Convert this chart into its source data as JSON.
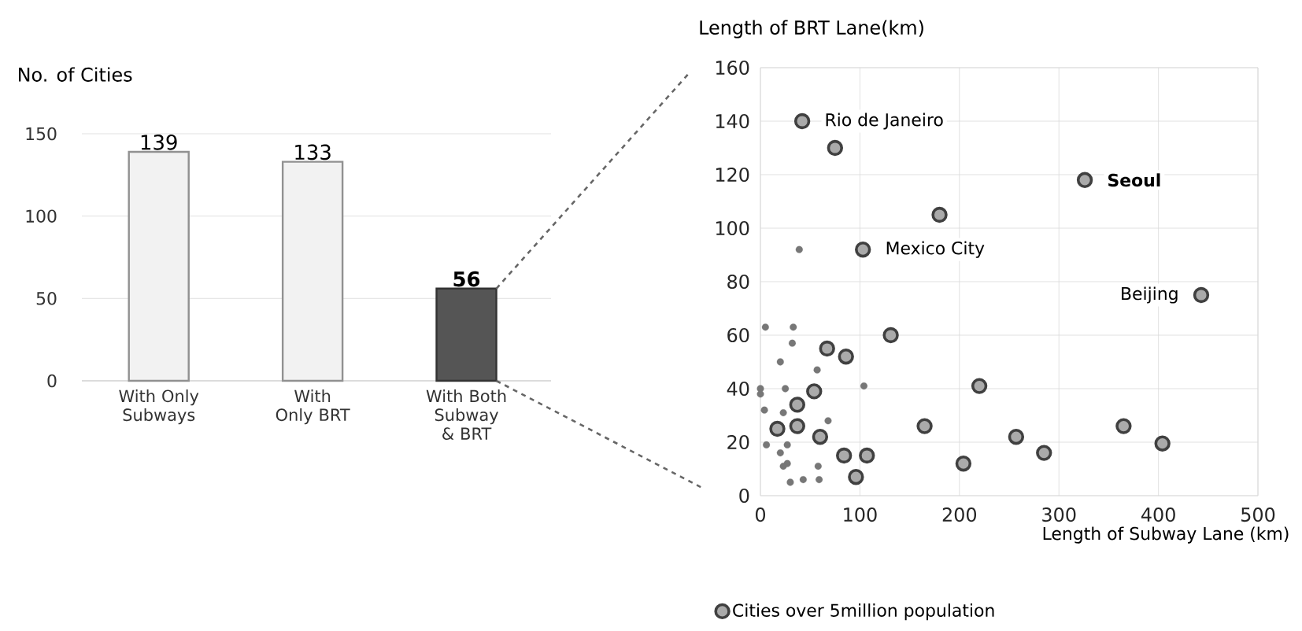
{
  "chart_data": [
    {
      "type": "bar",
      "ylabel": "No. of Cities",
      "categories": [
        "With Only Subways",
        "With Only BRT",
        "With Both Subway & BRT"
      ],
      "values": [
        139,
        133,
        56
      ],
      "colors": [
        "#f2f2f2",
        "#f2f2f2",
        "#555555"
      ],
      "value_labels": [
        "139",
        "133",
        "**56**"
      ],
      "ylim": [
        0,
        150
      ],
      "yticks": [
        0,
        50,
        100,
        150
      ],
      "grid": "y"
    },
    {
      "type": "scatter",
      "xlabel": "Length of Subway Lane (km)",
      "ylabel": "Length of BRT Lane(km)",
      "xlim": [
        0,
        500
      ],
      "ylim": [
        0,
        160
      ],
      "xticks": [
        0,
        100,
        200,
        300,
        400,
        500
      ],
      "yticks": [
        0,
        20,
        40,
        60,
        80,
        100,
        120,
        140,
        160
      ],
      "grid": true,
      "legend": "bottom",
      "series": [
        {
          "name": "Cities over 5million population",
          "color": "#aaaaaa",
          "x": [
            42,
            75,
            326,
            180,
            103,
            443,
            131,
            67,
            86,
            220,
            54,
            37,
            17,
            37,
            60,
            165,
            257,
            285,
            365,
            404,
            204,
            84,
            107,
            96
          ],
          "values": [
            140,
            130,
            118,
            105,
            92,
            75,
            60,
            55,
            52,
            41,
            39,
            34,
            25,
            26,
            22,
            26,
            22,
            16,
            26,
            19.5,
            12,
            15,
            15,
            7
          ]
        },
        {
          "color": "#777777",
          "x": [
            39,
            5,
            33,
            32,
            20,
            57,
            0,
            0,
            25,
            104,
            4,
            23,
            68,
            6,
            27,
            20,
            27,
            23,
            58,
            30,
            43,
            59
          ],
          "values": [
            92,
            63,
            63,
            57,
            50,
            47,
            40,
            38,
            40,
            41,
            32,
            31,
            28,
            19,
            19,
            16,
            12,
            11,
            11,
            5,
            6,
            6
          ]
        }
      ],
      "annotations": [
        {
          "text": "Rio de Janeiro",
          "x": 42,
          "y": 140
        },
        {
          "text": "**Seoul**",
          "x": 326,
          "y": 118
        },
        {
          "text": "Mexico City",
          "x": 103,
          "y": 92
        },
        {
          "text": "Beijing",
          "x": 443,
          "y": 75
        }
      ]
    }
  ]
}
